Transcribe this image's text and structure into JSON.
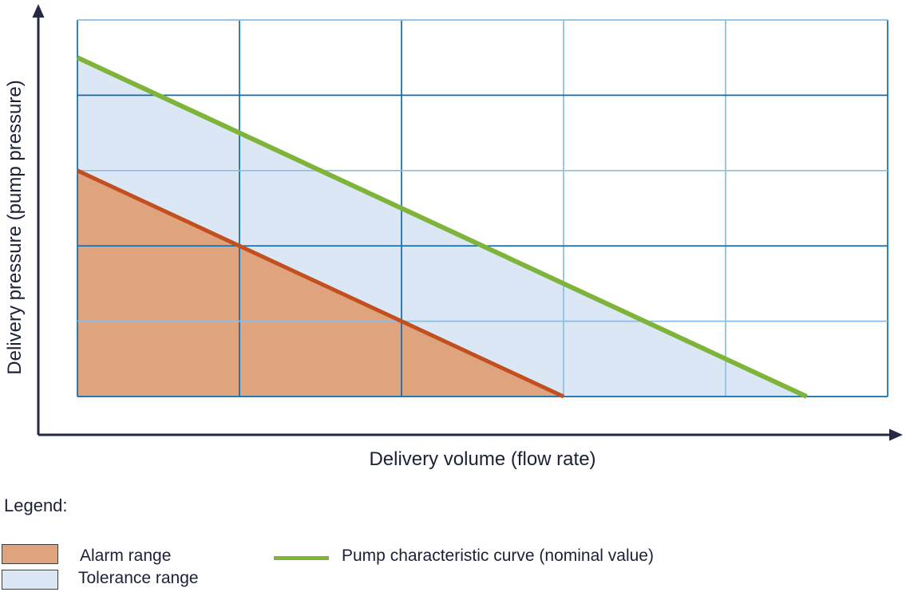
{
  "chart": {
    "x_axis_label": "Delivery volume (flow rate)",
    "y_axis_label": "Delivery pressure (pump pressure)"
  },
  "legend": {
    "title": "Legend:",
    "items": [
      {
        "label": "Alarm range",
        "swatch": "alarm-fill",
        "color": "#DFA47D"
      },
      {
        "label": "Tolerance range",
        "swatch": "tolerance-fill",
        "color": "#DCE7F5"
      },
      {
        "label": "Pump characteristic curve (nominal value)",
        "swatch": "line",
        "color": "#7FB43A"
      }
    ]
  },
  "colors": {
    "grid_dark": "#0D6CB1",
    "grid_light": "#8BBEE4",
    "alarm_fill": "#DFA47D",
    "tolerance_fill": "#DCE7F5",
    "alarm_line": "#C24F20",
    "pump_line": "#7FB43A",
    "axis": "#232A42",
    "text": "#1B2136",
    "swatch_border": "#3D3D3D"
  },
  "chart_data": {
    "type": "area",
    "title": "",
    "xlabel": "Delivery volume (flow rate)",
    "ylabel": "Delivery pressure (pump pressure)",
    "xlim": [
      0,
      5
    ],
    "ylim": [
      0,
      5
    ],
    "grid": true,
    "axis_tick_labels": "none (qualitative axes with arrows)",
    "x_gridlines": [
      0,
      1,
      2,
      3,
      4,
      5
    ],
    "y_gridlines": [
      0,
      1,
      2,
      3,
      4,
      5
    ],
    "grid_shades_x": [
      "dark",
      "dark",
      "dark",
      "light",
      "light",
      "dark"
    ],
    "grid_shades_y": [
      "dark",
      "light",
      "dark",
      "light",
      "dark",
      "light"
    ],
    "series": [
      {
        "name": "Pump characteristic curve (nominal value)",
        "type": "line",
        "color": "#7FB43A",
        "stroke_width": 6,
        "points": [
          [
            0,
            4.5
          ],
          [
            4.5,
            0
          ]
        ]
      },
      {
        "name": "Alarm limit curve",
        "type": "line",
        "color": "#C24F20",
        "stroke_width": 5,
        "points": [
          [
            0,
            3
          ],
          [
            3,
            0
          ]
        ]
      }
    ],
    "areas": [
      {
        "name": "Tolerance range",
        "color": "#DCE7F5",
        "region": "between alarm limit curve and pump characteristic curve",
        "vertices": [
          [
            0,
            4.5
          ],
          [
            4.5,
            0
          ],
          [
            3,
            0
          ],
          [
            0,
            3
          ]
        ]
      },
      {
        "name": "Alarm range",
        "color": "#DFA47D",
        "region": "below alarm limit curve",
        "vertices": [
          [
            0,
            3
          ],
          [
            3,
            0
          ],
          [
            0,
            0
          ]
        ]
      }
    ],
    "legend_position": "below chart, bottom-left"
  }
}
